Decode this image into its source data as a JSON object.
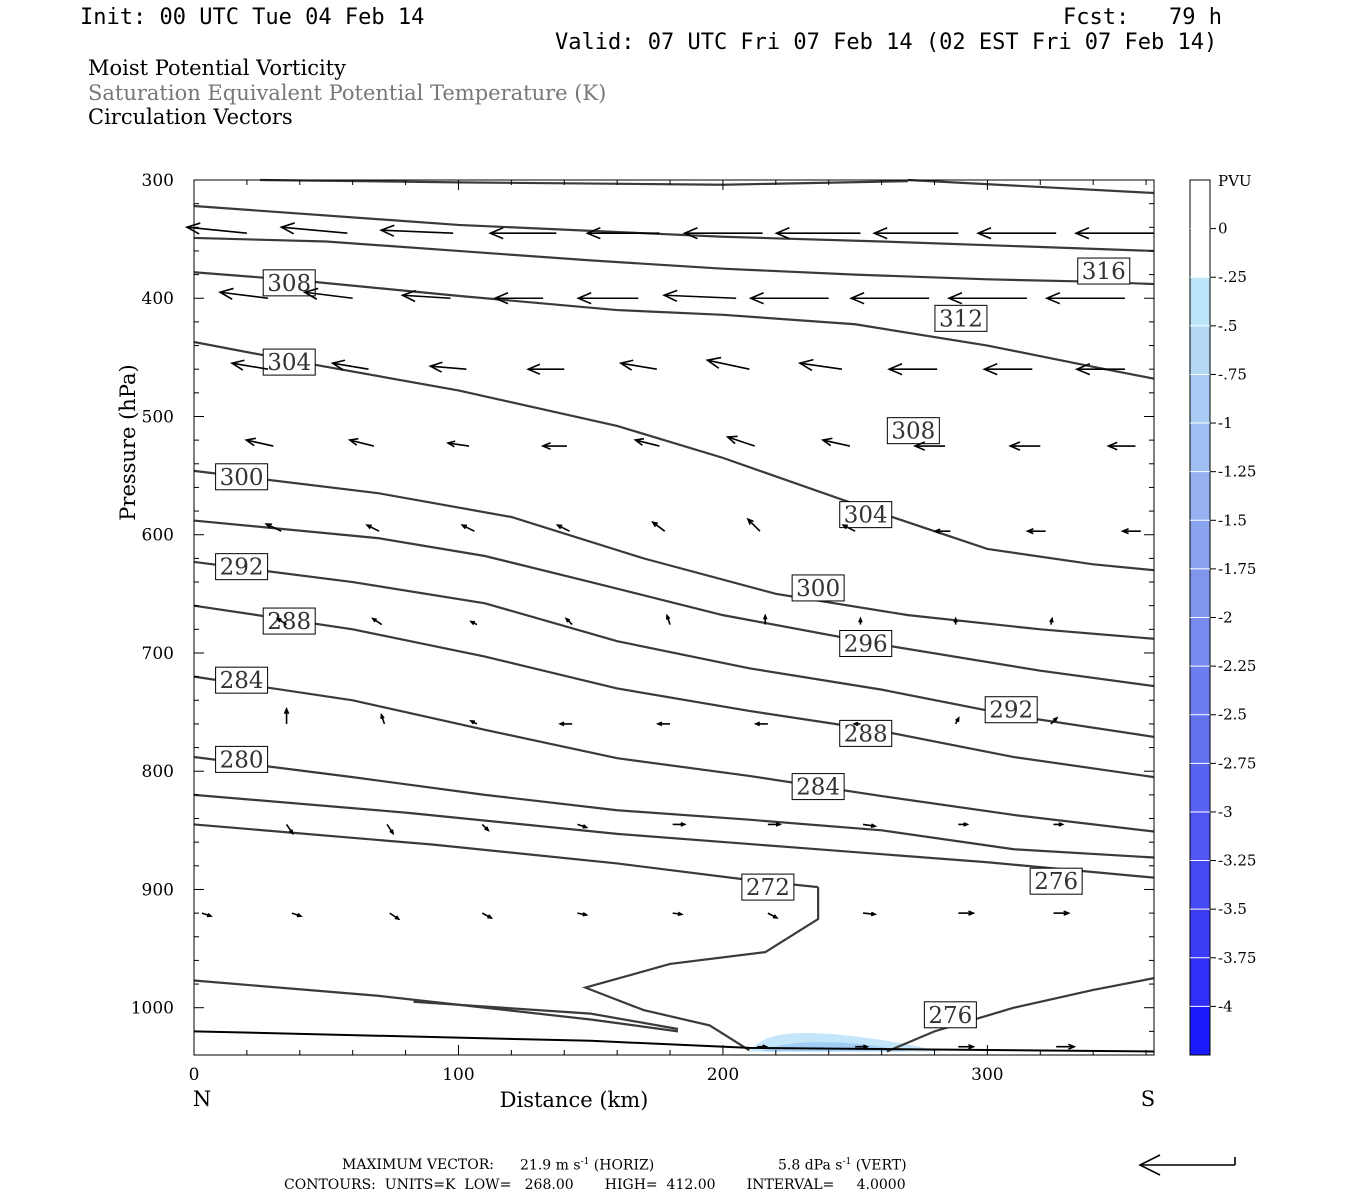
{
  "header": {
    "init": "Init: 00 UTC Tue 04 Feb 14",
    "forecast": "Fcst:   79 h",
    "valid": "Valid: 07 UTC Fri 07 Feb 14 (02 EST Fri 07 Feb 14)"
  },
  "layers": [
    "Moist Potential Vorticity",
    "Saturation Equivalent Potential Temperature (K)",
    "Circulation Vectors"
  ],
  "footer": {
    "max_vector_label": "MAXIMUM VECTOR:",
    "horiz_value": "21.9 m s",
    "horiz_unit": "(HORIZ)",
    "vert_value": "5.8 dPa s",
    "vert_unit": "(VERT)",
    "exponent": "-1",
    "contours": "CONTOURS:  UNITS=K  LOW=   268.00       HIGH=  412.00       INTERVAL=     4.0000"
  },
  "colors": {
    "contour": "#3a3a3a",
    "pv_light": "#c4e6fa",
    "pv_mid": "#a2cdf4"
  },
  "chart_data": {
    "type": "cross-section",
    "xlabel": "Distance (km)",
    "ylabel": "Pressure (hPa)",
    "xlim": [
      0,
      363
    ],
    "ylim": [
      1040,
      300
    ],
    "x_ticks": [
      0,
      100,
      200,
      300
    ],
    "y_ticks": [
      300,
      400,
      500,
      600,
      700,
      800,
      900,
      1000
    ],
    "endpoints": {
      "left": "N",
      "right": "S"
    },
    "colorbar": {
      "unit": "PVU",
      "levels": [
        "0",
        "-.25",
        "-.5",
        "-.75",
        "-1",
        "-1.25",
        "-1.5",
        "-1.75",
        "-2",
        "-2.25",
        "-2.5",
        "-2.75",
        "-3",
        "-3.25",
        "-3.5",
        "-3.75",
        "-4"
      ],
      "colors": [
        "#ffffff",
        "#ffffff",
        "#bde6fb",
        "#b3d8f6",
        "#a9cbf4",
        "#9fbef2",
        "#95b1f0",
        "#8ba4ef",
        "#8197ee",
        "#778aee",
        "#6d7def",
        "#6370f0",
        "#5963f1",
        "#4f56f2",
        "#4549f4",
        "#3b3cf6",
        "#2f2ff8",
        "#1a1afa"
      ]
    },
    "contours": [
      {
        "label": "316",
        "label_at": [
          344,
          377
        ],
        "points": [
          [
            0,
            322
          ],
          [
            100,
            338
          ],
          [
            200,
            348
          ],
          [
            260,
            352
          ],
          [
            363,
            360
          ]
        ]
      },
      {
        "label": "",
        "label_at": null,
        "points": [
          [
            0,
            349
          ],
          [
            50,
            352
          ],
          [
            100,
            360
          ],
          [
            150,
            368
          ],
          [
            200,
            375
          ],
          [
            250,
            380
          ],
          [
            300,
            384
          ],
          [
            340,
            386
          ],
          [
            363,
            388
          ]
        ]
      },
      {
        "label": "312",
        "label_at": [
          290,
          417
        ],
        "points": [
          [
            0,
            378
          ],
          [
            40,
            385
          ],
          [
            100,
            398
          ],
          [
            160,
            410
          ],
          [
            200,
            414
          ],
          [
            250,
            422
          ],
          [
            300,
            440
          ],
          [
            340,
            458
          ],
          [
            363,
            468
          ]
        ]
      },
      {
        "label": "308",
        "label_at": [
          36,
          387
        ],
        "points": [
          [
            0,
            437
          ],
          [
            40,
            454
          ],
          [
            100,
            478
          ],
          [
            160,
            508
          ],
          [
            200,
            535
          ],
          [
            260,
            582
          ],
          [
            300,
            612
          ],
          [
            340,
            625
          ],
          [
            363,
            630
          ]
        ]
      },
      {
        "label": "308",
        "label_at": [
          272,
          512
        ],
        "points": [
          [
            0,
            0
          ]
        ]
      },
      {
        "label": "304",
        "label_at": [
          36,
          454
        ],
        "points": [
          [
            0,
            0
          ]
        ]
      },
      {
        "label": "304",
        "label_at": [
          254,
          583
        ],
        "points": [
          [
            0,
            0
          ]
        ]
      },
      {
        "label": "300",
        "label_at": [
          18,
          551
        ],
        "points": [
          [
            0,
            546
          ],
          [
            70,
            565
          ],
          [
            120,
            585
          ],
          [
            170,
            620
          ],
          [
            220,
            650
          ],
          [
            270,
            668
          ],
          [
            320,
            680
          ],
          [
            363,
            688
          ]
        ]
      },
      {
        "label": "300",
        "label_at": [
          236,
          645
        ],
        "points": [
          [
            0,
            0
          ]
        ]
      },
      {
        "label": "292",
        "label_at": [
          18,
          627
        ],
        "points": [
          [
            0,
            588
          ],
          [
            70,
            603
          ],
          [
            110,
            618
          ],
          [
            150,
            640
          ],
          [
            200,
            668
          ],
          [
            260,
            693
          ],
          [
            320,
            715
          ],
          [
            363,
            728
          ]
        ]
      },
      {
        "label": "296",
        "label_at": [
          254,
          692
        ],
        "points": [
          [
            0,
            0
          ]
        ]
      },
      {
        "label": "288",
        "label_at": [
          36,
          673
        ],
        "points": [
          [
            0,
            623
          ],
          [
            60,
            640
          ],
          [
            110,
            658
          ],
          [
            160,
            690
          ],
          [
            210,
            713
          ],
          [
            260,
            731
          ],
          [
            310,
            753
          ],
          [
            363,
            771
          ]
        ]
      },
      {
        "label": "292",
        "label_at": [
          309,
          748
        ],
        "points": [
          [
            0,
            0
          ]
        ]
      },
      {
        "label": "284",
        "label_at": [
          18,
          723
        ],
        "points": [
          [
            0,
            660
          ],
          [
            60,
            680
          ],
          [
            110,
            703
          ],
          [
            160,
            730
          ],
          [
            210,
            749
          ],
          [
            260,
            766
          ],
          [
            310,
            788
          ],
          [
            363,
            805
          ]
        ]
      },
      {
        "label": "288",
        "label_at": [
          254,
          768
        ],
        "points": [
          [
            0,
            0
          ]
        ]
      },
      {
        "label": "280",
        "label_at": [
          18,
          790
        ],
        "points": [
          [
            0,
            720
          ],
          [
            60,
            740
          ],
          [
            110,
            765
          ],
          [
            160,
            789
          ],
          [
            210,
            804
          ],
          [
            260,
            821
          ],
          [
            310,
            837
          ],
          [
            363,
            851
          ]
        ]
      },
      {
        "label": "284",
        "label_at": [
          236,
          813
        ],
        "points": [
          [
            0,
            0
          ]
        ]
      },
      {
        "label": "",
        "label_at": null,
        "points": [
          [
            0,
            788
          ],
          [
            60,
            805
          ],
          [
            110,
            820
          ],
          [
            160,
            833
          ],
          [
            210,
            841
          ],
          [
            260,
            850
          ],
          [
            310,
            866
          ],
          [
            363,
            873
          ]
        ]
      },
      {
        "label": "276",
        "label_at": [
          326,
          893
        ],
        "points": [
          [
            0,
            820
          ],
          [
            80,
            835
          ],
          [
            160,
            853
          ],
          [
            230,
            865
          ],
          [
            300,
            877
          ],
          [
            363,
            890
          ]
        ]
      },
      {
        "label": "272",
        "label_at": [
          217,
          898
        ],
        "points": [
          [
            0,
            845
          ],
          [
            90,
            862
          ],
          [
            160,
            878
          ],
          [
            210,
            892
          ],
          [
            236,
            898
          ]
        ]
      }
    ],
    "vectors_note": "horizontal/vertical circulation arrows, mostly easterly (leftward) aloft, weak low-level westerly",
    "vectors": [
      {
        "row": 345,
        "x": [
          20,
          58,
          98,
          137,
          176,
          215,
          252,
          289,
          326,
          363
        ],
        "u": [
          -1.0,
          -1.1,
          -1.2,
          -1.1,
          -1.2,
          -1.3,
          -1.4,
          -1.4,
          -1.3,
          -1.3
        ],
        "w": [
          0.1,
          0.1,
          0.05,
          0,
          0,
          0,
          0,
          0,
          0,
          0
        ]
      },
      {
        "row": 400,
        "x": [
          28,
          60,
          97,
          132,
          168,
          205,
          240,
          278,
          315,
          352
        ],
        "u": [
          -0.8,
          -0.8,
          -0.8,
          -0.8,
          -1.0,
          -1.2,
          -1.3,
          -1.3,
          -1.3,
          -1.3
        ],
        "w": [
          0.1,
          0.1,
          0.05,
          0,
          0,
          0.05,
          0,
          0,
          0,
          0
        ]
      },
      {
        "row": 460,
        "x": [
          28,
          66,
          103,
          140,
          175,
          210,
          245,
          281,
          317,
          352
        ],
        "u": [
          -0.6,
          -0.6,
          -0.6,
          -0.6,
          -0.6,
          -0.7,
          -0.7,
          -0.8,
          -0.8,
          -0.8
        ],
        "w": [
          0.1,
          0.1,
          0.05,
          0,
          0.1,
          0.15,
          0.1,
          0,
          0,
          0
        ]
      },
      {
        "row": 525,
        "x": [
          30,
          68,
          104,
          141,
          176,
          212,
          248,
          284,
          320,
          356
        ],
        "u": [
          -0.45,
          -0.4,
          -0.35,
          -0.4,
          -0.4,
          -0.45,
          -0.45,
          -0.5,
          -0.5,
          -0.45
        ],
        "w": [
          0.1,
          0.1,
          0.05,
          0,
          0.1,
          0.15,
          0.1,
          0,
          0,
          0
        ]
      },
      {
        "row": 597,
        "x": [
          33,
          70,
          106,
          142,
          178,
          214,
          250,
          286,
          322,
          358
        ],
        "u": [
          -0.25,
          -0.2,
          -0.2,
          -0.2,
          -0.2,
          -0.2,
          -0.2,
          -0.25,
          -0.3,
          -0.3
        ],
        "w": [
          0.12,
          0.1,
          0.1,
          0.1,
          0.15,
          0.2,
          0.1,
          0,
          0,
          0
        ]
      },
      {
        "row": 676,
        "x": [
          35,
          71,
          107,
          143,
          180,
          216,
          252,
          288,
          324
        ],
        "u": [
          -0.15,
          -0.15,
          -0.1,
          -0.1,
          -0.05,
          0,
          0,
          0,
          0.02
        ],
        "w": [
          0.1,
          0.1,
          0.05,
          0.1,
          0.15,
          0.15,
          0.1,
          0.1,
          0.1
        ]
      },
      {
        "row": 760,
        "x": [
          35,
          72,
          107,
          143,
          180,
          217,
          252,
          288,
          324
        ],
        "u": [
          0,
          -0.05,
          -0.1,
          -0.2,
          -0.2,
          -0.2,
          -0.1,
          0.05,
          0.1
        ],
        "w": [
          0.25,
          0.15,
          0.05,
          0,
          0,
          0,
          0,
          0.1,
          0.1
        ]
      },
      {
        "row": 845,
        "x": [
          35,
          73,
          109,
          145,
          181,
          217,
          253,
          289,
          325
        ],
        "u": [
          0.1,
          0.1,
          0.1,
          0.15,
          0.2,
          0.2,
          0.2,
          0.15,
          0.15
        ],
        "w": [
          -0.15,
          -0.15,
          -0.1,
          -0.05,
          0,
          0,
          -0.03,
          0,
          0
        ]
      },
      {
        "row": 920,
        "x": [
          3,
          37,
          74,
          109,
          145,
          181,
          217,
          253,
          289,
          325
        ],
        "u": [
          0.15,
          0.15,
          0.15,
          0.15,
          0.15,
          0.15,
          0.15,
          0.2,
          0.25,
          0.25
        ],
        "w": [
          -0.05,
          -0.05,
          -0.1,
          -0.08,
          -0.03,
          -0.02,
          -0.08,
          -0.02,
          0,
          0
        ]
      },
      {
        "row": 1033,
        "x": [
          213,
          250,
          289,
          326
        ],
        "u": [
          0.15,
          0.2,
          0.25,
          0.3
        ],
        "w": [
          0,
          0,
          0,
          0
        ]
      }
    ]
  }
}
